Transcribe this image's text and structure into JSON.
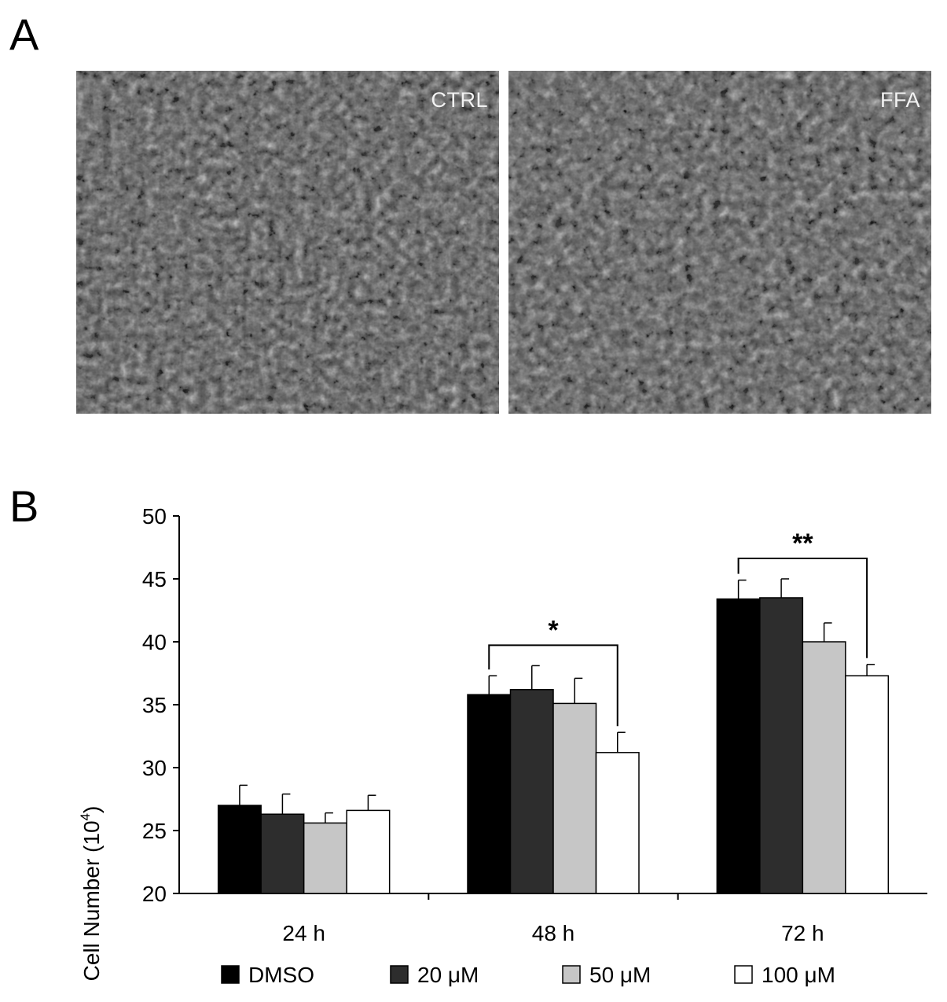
{
  "panels": {
    "a_letter": "A",
    "b_letter": "B"
  },
  "micrographs": [
    {
      "label": "CTRL"
    },
    {
      "label": "FFA"
    }
  ],
  "chart_data": {
    "type": "bar",
    "categories": [
      "24 h",
      "48 h",
      "72 h"
    ],
    "series": [
      {
        "name": "DMSO",
        "color": "#000000",
        "values": [
          27.0,
          35.8,
          43.4
        ],
        "errors": [
          1.6,
          1.5,
          1.5
        ]
      },
      {
        "name": "20 μM",
        "color": "#2d2d2d",
        "values": [
          26.3,
          36.2,
          43.5
        ],
        "errors": [
          1.6,
          1.9,
          1.5
        ]
      },
      {
        "name": "50 μM",
        "color": "#c6c6c6",
        "values": [
          25.6,
          35.1,
          40.0
        ],
        "errors": [
          0.8,
          2.0,
          1.5
        ]
      },
      {
        "name": "100 μM",
        "color": "#ffffff",
        "values": [
          26.6,
          31.2,
          37.3
        ],
        "errors": [
          1.2,
          1.6,
          0.9
        ]
      }
    ],
    "ylabel": "Cell Number (10",
    "ylabel_sup": "4",
    "ylabel_close": ")",
    "ylim": [
      20,
      50
    ],
    "yticks": [
      20,
      25,
      30,
      35,
      40,
      45,
      50
    ],
    "legend_position": "bottom",
    "annotations": [
      {
        "category": "48 h",
        "from_series": 0,
        "to_series": 3,
        "text": "*"
      },
      {
        "category": "72 h",
        "from_series": 0,
        "to_series": 3,
        "text": "**"
      }
    ]
  }
}
